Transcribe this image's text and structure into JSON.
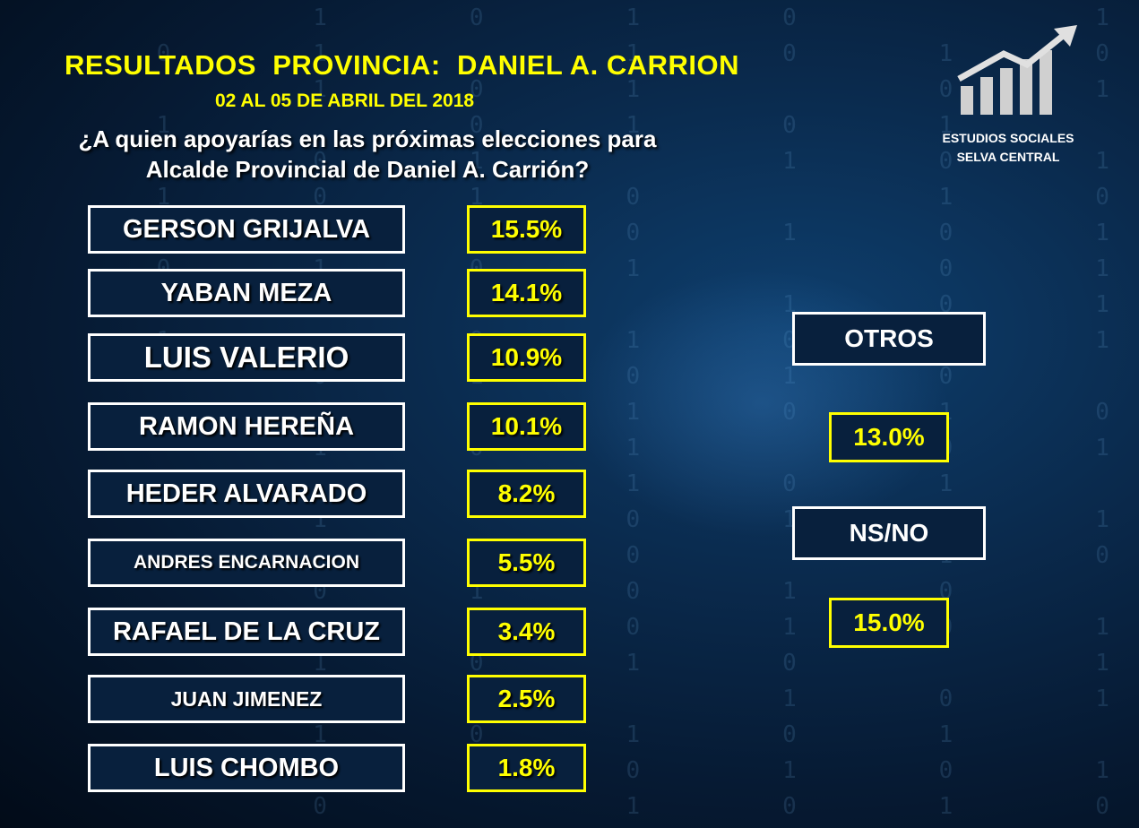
{
  "header": {
    "title": "RESULTADOS  PROVINCIA:  DANIEL A. CARRION",
    "subtitle": "02 AL 05 DE ABRIL DEL 2018",
    "question_line1": "¿A quien apoyarías en las próximas elecciones para",
    "question_line2": "Alcalde Provincial de Daniel A. Carrión?"
  },
  "logo": {
    "icon": "bar-chart-growth-icon",
    "line1": "ESTUDIOS SOCIALES",
    "line2": "SELVA CENTRAL"
  },
  "colors": {
    "accent": "#ffff00",
    "text": "#ffffff",
    "background": "#061a33"
  },
  "chart_data": {
    "type": "table",
    "categories": [
      "GERSON GRIJALVA",
      "YABAN MEZA",
      "LUIS VALERIO",
      "RAMON HEREÑA",
      "HEDER ALVARADO",
      "ANDRES ENCARNACION",
      "RAFAEL DE LA CRUZ",
      "JUAN JIMENEZ",
      "LUIS CHOMBO"
    ],
    "labels": [
      "15.5%",
      "14.1%",
      "10.9%",
      "10.1%",
      "8.2%",
      "5.5%",
      "3.4%",
      "2.5%",
      "1.8%"
    ],
    "values": [
      15.5,
      14.1,
      10.9,
      10.1,
      8.2,
      5.5,
      3.4,
      2.5,
      1.8
    ],
    "extras": [
      {
        "label": "OTROS",
        "value_label": "13.0%",
        "value": 13.0
      },
      {
        "label": "NS/NO",
        "value_label": "15.0%",
        "value": 15.0
      }
    ]
  }
}
